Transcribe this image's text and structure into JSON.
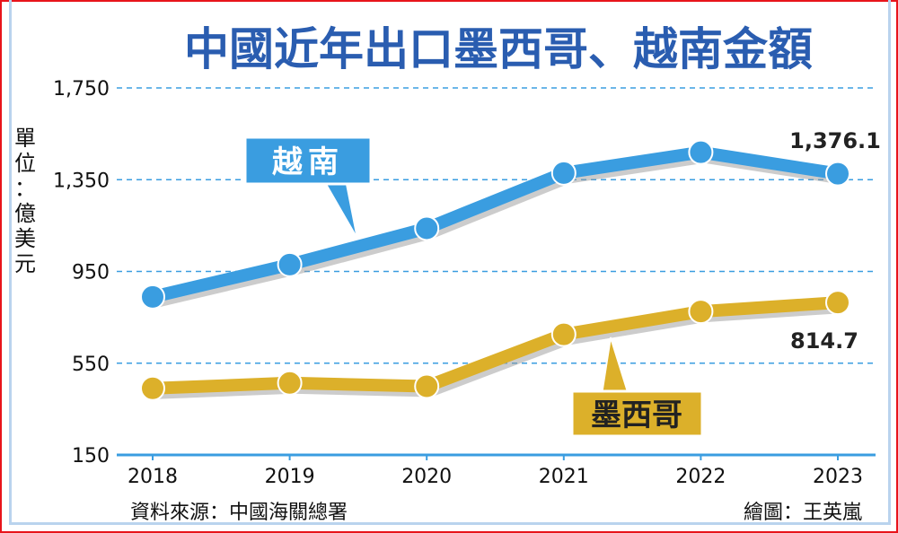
{
  "chart_data": {
    "type": "line",
    "title": "中國近年出口墨西哥、越南金額",
    "ylabel": "單位：億美元",
    "ylabel_chars": [
      "單",
      "位",
      "：",
      "億",
      "美",
      "元"
    ],
    "categories": [
      "2018",
      "2019",
      "2020",
      "2021",
      "2022",
      "2023"
    ],
    "yticks": [
      "1,750",
      "1,350",
      "950",
      "550",
      "150"
    ],
    "ytick_values": [
      1750,
      1350,
      950,
      550,
      150
    ],
    "ylim": [
      150,
      1750
    ],
    "grid": true,
    "series": [
      {
        "name": "越南",
        "color": "#3a9de0",
        "values": [
          839,
          979.7,
          1138,
          1379,
          1469.6,
          1376.1
        ],
        "end_label": "1,376.1"
      },
      {
        "name": "墨西哥",
        "color": "#dcb02a",
        "values": [
          440.3,
          463.8,
          449.1,
          675.6,
          775.3,
          814.7
        ],
        "end_label": "814.7"
      }
    ],
    "source": "資料來源：中國海關總署",
    "credit": "繪圖：王英嵐"
  }
}
